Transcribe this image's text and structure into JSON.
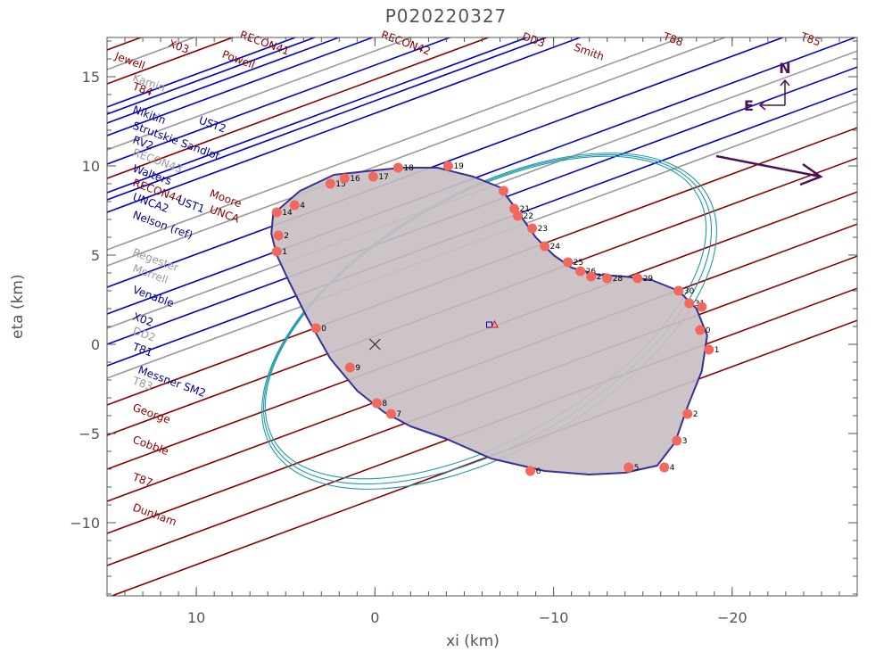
{
  "chart_data": {
    "type": "scatter",
    "title": "P020220327",
    "xlabel": "xi (km)",
    "ylabel": "eta (km)",
    "xlim": [
      15,
      -27
    ],
    "ylim": [
      -14.1,
      17.2
    ],
    "xticks": [
      10,
      0,
      -10,
      -20
    ],
    "yticks": [
      -10,
      -5,
      0,
      5,
      10,
      15
    ],
    "tick_labels_x": [
      "10",
      "0",
      "−10",
      "−20"
    ],
    "tick_labels_y": [
      "−10",
      "−5",
      "0",
      "5",
      "10",
      "15"
    ],
    "chord_slope": -0.37,
    "chord_labels": [
      {
        "label": "X03",
        "x": 11.6,
        "y": 16.7,
        "color": "#8b0000"
      },
      {
        "label": "Jewell",
        "x": 14.6,
        "y": 16.0,
        "color": "#8b0000"
      },
      {
        "label": "Kamin",
        "x": 13.6,
        "y": 14.8,
        "color": "#999999"
      },
      {
        "label": "T84",
        "x": 13.6,
        "y": 14.3,
        "color": "#8b0000"
      },
      {
        "label": "Nikitin",
        "x": 13.6,
        "y": 13.0,
        "color": "#00008b"
      },
      {
        "label": "UST2",
        "x": 9.9,
        "y": 12.4,
        "color": "#00008b"
      },
      {
        "label": "Strutskie Sandlot",
        "x": 13.6,
        "y": 12.1,
        "color": "#00008b"
      },
      {
        "label": "RV2",
        "x": 13.6,
        "y": 11.3,
        "color": "#00008b"
      },
      {
        "label": "RECON43",
        "x": 13.6,
        "y": 10.6,
        "color": "#999999"
      },
      {
        "label": "Walters",
        "x": 13.6,
        "y": 9.7,
        "color": "#00008b"
      },
      {
        "label": "RECON44",
        "x": 13.6,
        "y": 8.9,
        "color": "#8b0000"
      },
      {
        "label": "Moore",
        "x": 9.3,
        "y": 8.3,
        "color": "#8b0000"
      },
      {
        "label": "UNCA2",
        "x": 13.6,
        "y": 8.1,
        "color": "#00008b"
      },
      {
        "label": "UST1",
        "x": 11.1,
        "y": 7.9,
        "color": "#00008b"
      },
      {
        "label": "UNCA",
        "x": 9.3,
        "y": 7.4,
        "color": "#8b0000"
      },
      {
        "label": "Nelson (ref)",
        "x": 13.6,
        "y": 7.1,
        "color": "#00008b"
      },
      {
        "label": "Regester",
        "x": 13.6,
        "y": 5.0,
        "color": "#999999"
      },
      {
        "label": "Morrell",
        "x": 13.6,
        "y": 4.1,
        "color": "#999999"
      },
      {
        "label": "Venable",
        "x": 13.6,
        "y": 2.9,
        "color": "#00008b"
      },
      {
        "label": "X02",
        "x": 13.6,
        "y": 1.4,
        "color": "#00008b"
      },
      {
        "label": "DD2",
        "x": 13.6,
        "y": 0.6,
        "color": "#999999"
      },
      {
        "label": "T81",
        "x": 13.6,
        "y": -0.3,
        "color": "#00008b"
      },
      {
        "label": "Messner SM2",
        "x": 13.3,
        "y": -1.6,
        "color": "#00008b"
      },
      {
        "label": "T83",
        "x": 13.6,
        "y": -2.2,
        "color": "#999999"
      },
      {
        "label": "George",
        "x": 13.6,
        "y": -3.7,
        "color": "#8b0000"
      },
      {
        "label": "Cobble",
        "x": 13.6,
        "y": -5.5,
        "color": "#8b0000"
      },
      {
        "label": "T87",
        "x": 13.6,
        "y": -7.6,
        "color": "#8b0000"
      },
      {
        "label": "Dunham",
        "x": 13.6,
        "y": -9.3,
        "color": "#8b0000"
      },
      {
        "label": "RECON41",
        "x": 7.6,
        "y": 17.2,
        "color": "#8b0000"
      },
      {
        "label": "Powell",
        "x": 8.6,
        "y": 16.1,
        "color": "#8b0000"
      },
      {
        "label": "RECON42",
        "x": -0.3,
        "y": 17.2,
        "color": "#8b0000"
      },
      {
        "label": "DD3",
        "x": -8.2,
        "y": 17.1,
        "color": "#8b0000"
      },
      {
        "label": "Smith",
        "x": -11.1,
        "y": 16.5,
        "color": "#8b0000"
      },
      {
        "label": "T88",
        "x": -16.1,
        "y": 17.1,
        "color": "#8b0000"
      },
      {
        "label": "T85",
        "x": -23.8,
        "y": 17.1,
        "color": "#8b0000"
      }
    ],
    "chord_lines": [
      {
        "y0": 17.5,
        "color": "#8b0000"
      },
      {
        "y0": 16.5,
        "color": "#8b0000"
      },
      {
        "y0": 15.4,
        "color": "#999999"
      },
      {
        "y0": 14.6,
        "color": "#8b0000"
      },
      {
        "y0": 13.3,
        "color": "#0000cd"
      },
      {
        "y0": 12.9,
        "color": "#0000cd"
      },
      {
        "y0": 12.4,
        "color": "#0000cd"
      },
      {
        "y0": 11.7,
        "color": "#0000cd"
      },
      {
        "y0": 10.9,
        "color": "#999999"
      },
      {
        "y0": 10.1,
        "color": "#0000cd"
      },
      {
        "y0": 9.3,
        "color": "#8b0000"
      },
      {
        "y0": 8.5,
        "color": "#0000cd"
      },
      {
        "y0": 8.1,
        "color": "#0000cd"
      },
      {
        "y0": 7.4,
        "color": "#0000cd"
      },
      {
        "y0": 5.3,
        "color": "#999999"
      },
      {
        "y0": 4.4,
        "color": "#999999"
      },
      {
        "y0": 3.2,
        "color": "#0000cd"
      },
      {
        "y0": 1.7,
        "color": "#0000cd"
      },
      {
        "y0": 0.9,
        "color": "#999999"
      },
      {
        "y0": 0.0,
        "color": "#0000cd"
      },
      {
        "y0": -1.2,
        "color": "#0000cd"
      },
      {
        "y0": -1.9,
        "color": "#999999"
      },
      {
        "y0": -3.4,
        "color": "#8b0000"
      },
      {
        "y0": -5.1,
        "color": "#8b0000"
      },
      {
        "y0": -7.0,
        "color": "#8b0000"
      },
      {
        "y0": -8.8,
        "color": "#8b0000"
      },
      {
        "y0": -10.6,
        "color": "#8b0000"
      },
      {
        "y0": -12.4,
        "color": "#8b0000"
      },
      {
        "y0": -14.2,
        "color": "#8b0000"
      },
      {
        "y0": 19.0,
        "color": "#8b0000"
      },
      {
        "y0": 20.5,
        "color": "#8b0000"
      },
      {
        "y0": 22.0,
        "color": "#8b0000"
      },
      {
        "y0": 23.5,
        "color": "#8b0000"
      },
      {
        "y0": 25.5,
        "color": "#8b0000"
      },
      {
        "y0": 27.5,
        "color": "#8b0000"
      }
    ],
    "shape_outline": [
      [
        5.7,
        7.3
      ],
      [
        4.2,
        8.6
      ],
      [
        2.3,
        9.5
      ],
      [
        0.5,
        9.7
      ],
      [
        -1.5,
        9.9
      ],
      [
        -3.5,
        9.9
      ],
      [
        -5.5,
        9.4
      ],
      [
        -7.0,
        8.8
      ],
      [
        -7.6,
        8.0
      ],
      [
        -8.3,
        7.0
      ],
      [
        -9.0,
        6.0
      ],
      [
        -10.0,
        5.0
      ],
      [
        -11.0,
        4.3
      ],
      [
        -12.5,
        3.9
      ],
      [
        -14.0,
        3.8
      ],
      [
        -15.5,
        3.6
      ],
      [
        -17.0,
        3.0
      ],
      [
        -18.0,
        2.0
      ],
      [
        -18.6,
        0.5
      ],
      [
        -18.3,
        -1.5
      ],
      [
        -17.5,
        -3.5
      ],
      [
        -16.8,
        -5.5
      ],
      [
        -15.8,
        -6.8
      ],
      [
        -14.0,
        -7.2
      ],
      [
        -12.0,
        -7.3
      ],
      [
        -9.5,
        -7.1
      ],
      [
        -6.5,
        -6.4
      ],
      [
        -4.0,
        -5.3
      ],
      [
        -2.0,
        -4.6
      ],
      [
        -0.5,
        -3.8
      ],
      [
        1.0,
        -2.6
      ],
      [
        2.5,
        -0.8
      ],
      [
        3.8,
        1.5
      ],
      [
        4.8,
        3.5
      ],
      [
        5.5,
        5.0
      ],
      [
        5.8,
        6.2
      ]
    ],
    "ellipse_fits": [
      {
        "cx": -6.3,
        "cy": 1.4,
        "a": 13.9,
        "b": 7.0,
        "angle": -30
      },
      {
        "cx": -6.4,
        "cy": 1.3,
        "a": 14.1,
        "b": 7.2,
        "angle": -30
      },
      {
        "cx": -6.2,
        "cy": 1.5,
        "a": 13.7,
        "b": 6.8,
        "angle": -30
      }
    ],
    "observer_points": [
      {
        "x": 5.5,
        "y": 5.2,
        "label": "1"
      },
      {
        "x": 5.4,
        "y": 6.1,
        "label": "2"
      },
      {
        "x": 5.5,
        "y": 7.4,
        "label": "14"
      },
      {
        "x": 4.5,
        "y": 7.8,
        "label": "4"
      },
      {
        "x": 2.5,
        "y": 9.0,
        "label": "15"
      },
      {
        "x": 1.7,
        "y": 9.3,
        "label": "16"
      },
      {
        "x": 0.1,
        "y": 9.4,
        "label": "17"
      },
      {
        "x": -1.3,
        "y": 9.9,
        "label": "18"
      },
      {
        "x": -4.1,
        "y": 10.0,
        "label": "19"
      },
      {
        "x": -7.2,
        "y": 8.6,
        "label": ""
      },
      {
        "x": -7.8,
        "y": 7.6,
        "label": "21"
      },
      {
        "x": -8.0,
        "y": 7.2,
        "label": "22"
      },
      {
        "x": -8.8,
        "y": 6.5,
        "label": "23"
      },
      {
        "x": -9.5,
        "y": 5.5,
        "label": "24"
      },
      {
        "x": -10.8,
        "y": 4.6,
        "label": "25"
      },
      {
        "x": -11.5,
        "y": 4.1,
        "label": "26"
      },
      {
        "x": -12.1,
        "y": 3.8,
        "label": "27"
      },
      {
        "x": -13.0,
        "y": 3.7,
        "label": "28"
      },
      {
        "x": -14.7,
        "y": 3.7,
        "label": "29"
      },
      {
        "x": -17.0,
        "y": 3.0,
        "label": "30"
      },
      {
        "x": -17.6,
        "y": 2.3,
        "label": "31"
      },
      {
        "x": -18.3,
        "y": 2.1,
        "label": ""
      },
      {
        "x": -18.2,
        "y": 0.8,
        "label": "0"
      },
      {
        "x": -18.7,
        "y": -0.3,
        "label": "1"
      },
      {
        "x": -17.5,
        "y": -3.9,
        "label": "2"
      },
      {
        "x": -16.9,
        "y": -5.4,
        "label": "3"
      },
      {
        "x": -16.2,
        "y": -6.9,
        "label": "4"
      },
      {
        "x": -14.2,
        "y": -6.9,
        "label": "5"
      },
      {
        "x": -8.7,
        "y": -7.1,
        "label": "6"
      },
      {
        "x": -0.9,
        "y": -3.9,
        "label": "7"
      },
      {
        "x": -0.1,
        "y": -3.3,
        "label": "8"
      },
      {
        "x": 1.4,
        "y": -1.3,
        "label": "9"
      },
      {
        "x": 3.3,
        "y": 0.9,
        "label": "0"
      }
    ],
    "center_marks": {
      "cross": {
        "x": 0,
        "y": 0
      },
      "square": {
        "x": -6.4,
        "y": 1.1
      },
      "triangle": {
        "x": -6.7,
        "y": 1.1
      }
    },
    "compass": {
      "north": "N",
      "east": "E"
    }
  }
}
